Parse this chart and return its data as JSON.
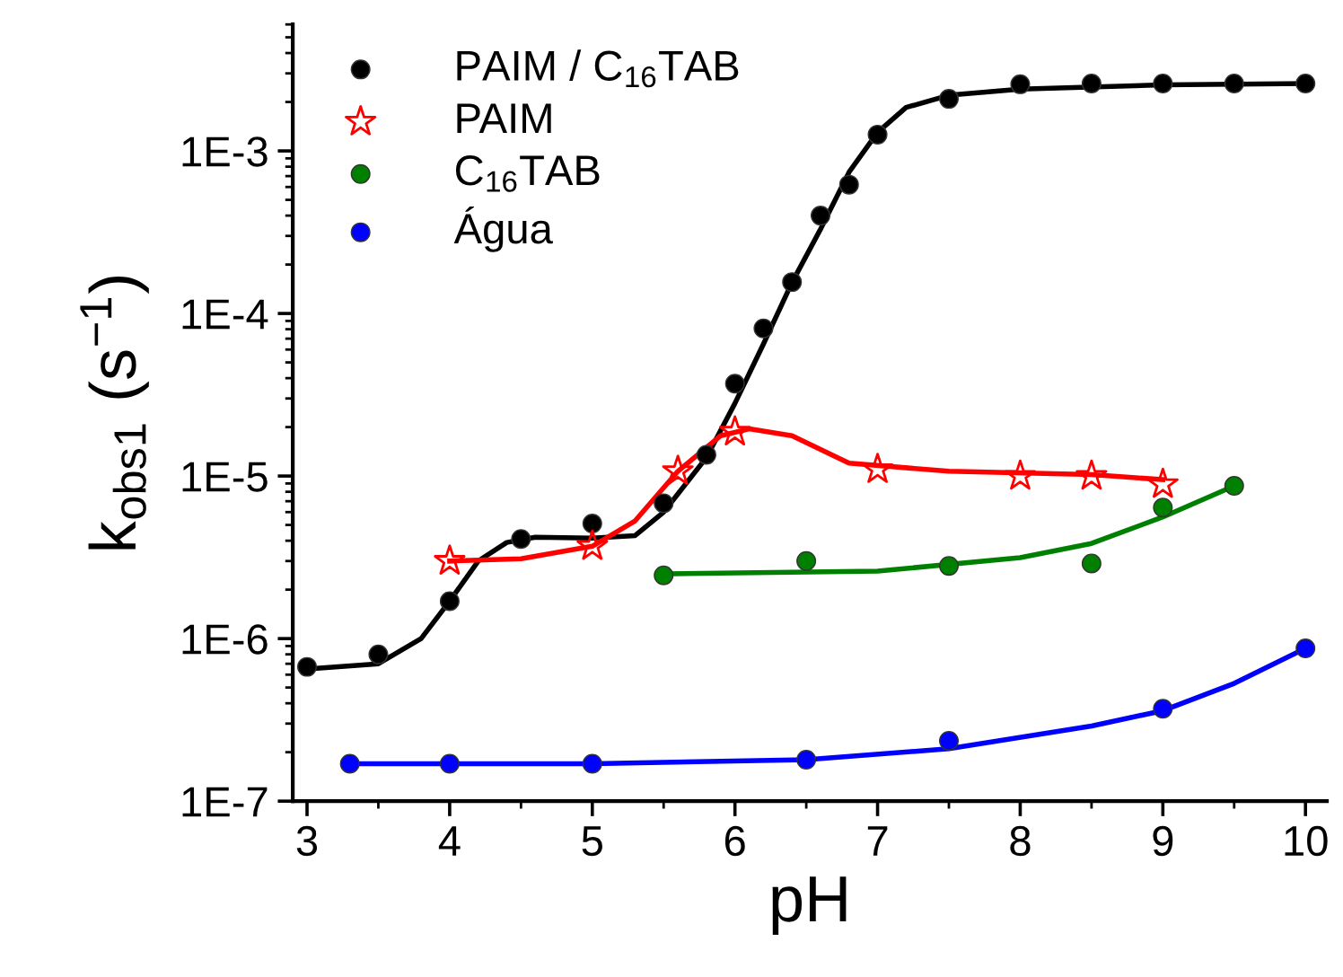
{
  "chart_data": {
    "type": "scatter",
    "xlabel": "pH",
    "ylabel": "k$_{obs1}$ (s$^{−1}$)",
    "log": "y",
    "xlim": [
      2.9,
      10.15
    ],
    "xticks": [
      3,
      4,
      5,
      6,
      7,
      8,
      9,
      10
    ],
    "ylim": [
      1e-07,
      0.006
    ],
    "yticks": [
      {
        "value": 1e-07,
        "label": "1E-7"
      },
      {
        "value": 1e-06,
        "label": "1E-6"
      },
      {
        "value": 1e-05,
        "label": "1E-5"
      },
      {
        "value": 0.0001,
        "label": "1E-4"
      },
      {
        "value": 0.001,
        "label": "1E-3"
      }
    ],
    "grid": false,
    "legend": "top left",
    "series": [
      {
        "name": "PAIM / C$_{16}$TAB",
        "marker": "circle",
        "color": "#000000",
        "x": [
          3,
          3.5,
          4,
          4.5,
          5,
          5.5,
          5.8,
          6,
          6.2,
          6.4,
          6.6,
          6.8,
          7,
          7.5,
          8,
          8.5,
          9,
          9.5,
          10
        ],
        "values": [
          6.7e-07,
          8e-07,
          1.7e-06,
          4.1e-06,
          5.1e-06,
          6.8e-06,
          1.35e-05,
          3.7e-05,
          8.1e-05,
          0.000156,
          0.0004,
          0.00062,
          0.00126,
          0.00209,
          0.00257,
          0.0026,
          0.0026,
          0.0026,
          0.0026
        ]
      },
      {
        "name": "PAIM",
        "marker": "star",
        "color": "#ff0000",
        "x": [
          4,
          5,
          5.6,
          6,
          7,
          8,
          8.5,
          9
        ],
        "values": [
          3e-06,
          3.7e-06,
          1.07e-05,
          1.87e-05,
          1.1e-05,
          1e-05,
          1e-05,
          8.9e-06
        ]
      },
      {
        "name": "C$_{16}$TAB",
        "marker": "circle",
        "color": "#008000",
        "x": [
          5.5,
          6.5,
          7.5,
          8.5,
          9,
          9.5
        ],
        "values": [
          2.45e-06,
          3e-06,
          2.8e-06,
          2.9e-06,
          6.4e-06,
          8.7e-06
        ]
      },
      {
        "name": "Água",
        "marker": "circle",
        "color": "#0000ff",
        "x": [
          3.3,
          4,
          5,
          6.5,
          7.5,
          9,
          10
        ],
        "values": [
          1.7e-07,
          1.7e-07,
          1.7e-07,
          1.8e-07,
          2.35e-07,
          3.7e-07,
          8.7e-07
        ]
      },
      {
        "type": "line",
        "color": "#000000",
        "x": [
          3,
          3.5,
          3.8,
          4,
          4.2,
          4.4,
          4.6,
          5,
          5.3,
          5.5,
          5.8,
          6,
          6.2,
          6.4,
          6.6,
          6.8,
          7,
          7.2,
          7.5,
          8,
          9,
          10
        ],
        "values": [
          6.5e-07,
          7e-07,
          1e-06,
          1.7e-06,
          3e-06,
          3.9e-06,
          4.2e-06,
          4.15e-06,
          4.3e-06,
          6e-06,
          1.3e-05,
          2.8e-05,
          6.5e-05,
          0.000155,
          0.00033,
          0.00074,
          0.0013,
          0.00185,
          0.0022,
          0.0024,
          0.00255,
          0.0026
        ]
      },
      {
        "type": "line",
        "color": "#ff0000",
        "x": [
          4,
          4.5,
          5,
          5.3,
          5.6,
          5.9,
          6.1,
          6.4,
          6.8,
          7.5,
          8.5,
          9
        ],
        "values": [
          3e-06,
          3.1e-06,
          3.7e-06,
          5.3e-06,
          1.07e-05,
          1.77e-05,
          1.95e-05,
          1.77e-05,
          1.2e-05,
          1.07e-05,
          1.02e-05,
          9.5e-06
        ]
      },
      {
        "type": "line",
        "color": "#008000",
        "x": [
          5.5,
          7,
          8,
          8.5,
          9,
          9.5
        ],
        "values": [
          2.5e-06,
          2.6e-06,
          3.15e-06,
          3.85e-06,
          5.6e-06,
          8.7e-06
        ]
      },
      {
        "type": "line",
        "color": "#0000ff",
        "x": [
          3.3,
          5,
          6.5,
          7.5,
          8.5,
          9,
          9.5,
          10
        ],
        "values": [
          1.7e-07,
          1.7e-07,
          1.8e-07,
          2.1e-07,
          2.9e-07,
          3.6e-07,
          5.3e-07,
          8.7e-07
        ]
      }
    ]
  }
}
